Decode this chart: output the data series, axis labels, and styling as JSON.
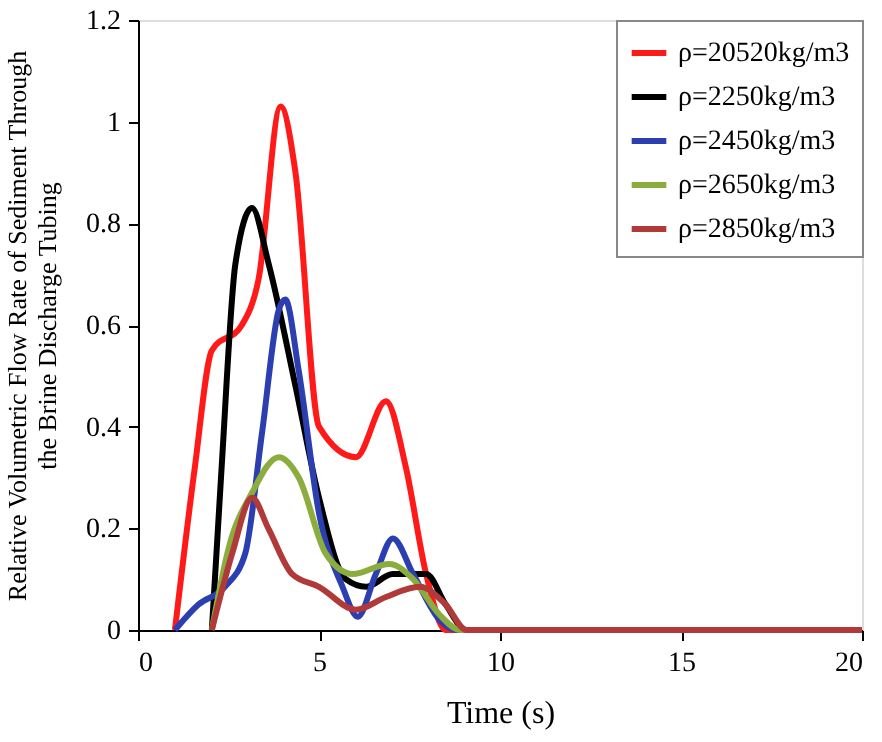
{
  "chart_data": {
    "type": "line",
    "xlabel": "Time (s)",
    "ylabel": "Relative Volumetric Flow Rate of Sediment Through the Brine Discharge Tubing",
    "xlim": [
      0,
      20
    ],
    "xticks": [
      0,
      5,
      10,
      15,
      20
    ],
    "ylim": [
      0,
      1.2
    ],
    "yticks": [
      0,
      0.2,
      0.4,
      0.6,
      0.8,
      1,
      1.2
    ],
    "grid": false,
    "legend": "top right",
    "marker": "none",
    "line_style": "solid",
    "series": [
      {
        "name": "ρ=20520kg/m3",
        "color": "#ff1a1a",
        "x": [
          1.02,
          1.57,
          2.04,
          2.87,
          3.33,
          3.94,
          4.35,
          5,
          6.02,
          6.85,
          7.4,
          7.96,
          8.5,
          20
        ],
        "values": [
          0,
          0.32,
          0.55,
          0.6,
          0.69,
          1.03,
          0.9,
          0.4,
          0.34,
          0.45,
          0.32,
          0.11,
          0,
          0
        ]
      },
      {
        "name": "ρ=2250kg/m3",
        "color": "#000000",
        "x": [
          2.04,
          2.31,
          2.69,
          3.15,
          3.61,
          4.35,
          5,
          5.74,
          6.3,
          7.04,
          7.96,
          8.5,
          9.07,
          20
        ],
        "values": [
          0,
          0.32,
          0.72,
          0.83,
          0.72,
          0.48,
          0.26,
          0.1,
          0.085,
          0.11,
          0.11,
          0.05,
          0,
          0
        ]
      },
      {
        "name": "ρ=2450kg/m3",
        "color": "#2b3fb0",
        "x": [
          1.02,
          1.67,
          2.4,
          2.96,
          3.43,
          3.89,
          4.07,
          4.44,
          5,
          5.65,
          6.07,
          6.57,
          7.04,
          7.6,
          8.33,
          8.8,
          20
        ],
        "values": [
          0,
          0.05,
          0.085,
          0.15,
          0.39,
          0.63,
          0.65,
          0.51,
          0.23,
          0.085,
          0.026,
          0.11,
          0.18,
          0.11,
          0.02,
          0,
          0
        ]
      },
      {
        "name": "ρ=2650kg/m3",
        "color": "#8aad3e",
        "x": [
          2.04,
          2.5,
          3.15,
          3.89,
          4.44,
          5.19,
          5.93,
          6.94,
          7.6,
          8.33,
          8.9,
          20
        ],
        "values": [
          0,
          0.16,
          0.27,
          0.34,
          0.3,
          0.15,
          0.11,
          0.13,
          0.1,
          0.03,
          0,
          0
        ]
      },
      {
        "name": "ρ=2850kg/m3",
        "color": "#b03a3a",
        "x": [
          2.04,
          2.6,
          3.15,
          3.6,
          4.26,
          5,
          6.02,
          6.85,
          7.78,
          8.5,
          9.07,
          20
        ],
        "values": [
          0,
          0.15,
          0.26,
          0.2,
          0.11,
          0.085,
          0.04,
          0.065,
          0.085,
          0.05,
          0,
          0
        ]
      }
    ]
  }
}
